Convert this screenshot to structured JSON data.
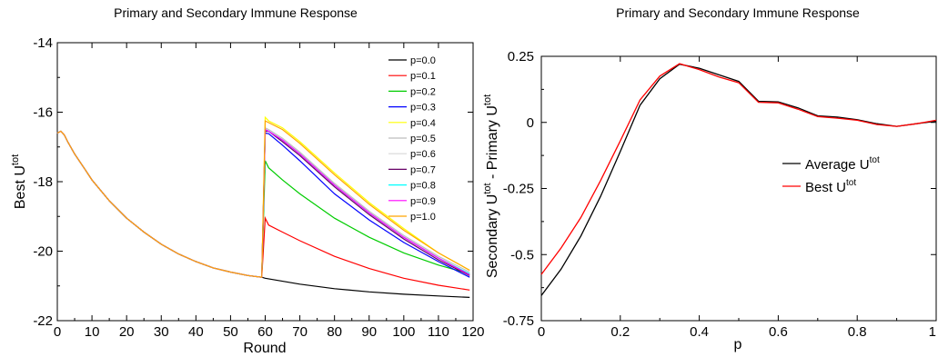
{
  "chart_data": [
    {
      "type": "line",
      "title": "Primary and Secondary Immune Response",
      "xlabel": "Round",
      "ylabel_main": "Best U",
      "ylabel_sup": "tot",
      "xlim": [
        0,
        120
      ],
      "ylim": [
        -22,
        -14
      ],
      "xticks": [
        0,
        10,
        20,
        30,
        40,
        50,
        60,
        70,
        80,
        90,
        100,
        110,
        120
      ],
      "yticks": [
        -22,
        -20,
        -18,
        -16,
        -14
      ],
      "grid": false,
      "legend_position": "top-right",
      "primary_curve": {
        "x": [
          0,
          1,
          2,
          3,
          5,
          8,
          10,
          15,
          20,
          25,
          30,
          35,
          40,
          45,
          50,
          55,
          59
        ],
        "y": [
          -16.6,
          -16.55,
          -16.65,
          -16.85,
          -17.2,
          -17.65,
          -17.95,
          -18.55,
          -19.05,
          -19.45,
          -19.8,
          -20.08,
          -20.3,
          -20.48,
          -20.6,
          -20.7,
          -20.75
        ]
      },
      "series": [
        {
          "name": "p=0.0",
          "color": "#000000",
          "x": [
            60,
            70,
            80,
            90,
            100,
            110,
            119
          ],
          "y": [
            -20.78,
            -20.95,
            -21.08,
            -21.17,
            -21.24,
            -21.29,
            -21.33
          ]
        },
        {
          "name": "p=0.1",
          "color": "#ff0000",
          "x": [
            60,
            61,
            65,
            70,
            80,
            90,
            100,
            110,
            119
          ],
          "y": [
            -19.05,
            -19.25,
            -19.45,
            -19.7,
            -20.15,
            -20.5,
            -20.78,
            -20.98,
            -21.12
          ]
        },
        {
          "name": "p=0.2",
          "color": "#00cc00",
          "x": [
            60,
            61,
            65,
            70,
            80,
            90,
            100,
            110,
            119
          ],
          "y": [
            -17.4,
            -17.6,
            -17.95,
            -18.35,
            -19.05,
            -19.6,
            -20.05,
            -20.4,
            -20.65
          ]
        },
        {
          "name": "p=0.3",
          "color": "#0000ff",
          "x": [
            60,
            61,
            65,
            70,
            80,
            90,
            100,
            110,
            119
          ],
          "y": [
            -16.6,
            -16.62,
            -16.95,
            -17.4,
            -18.35,
            -19.1,
            -19.75,
            -20.3,
            -20.75
          ]
        },
        {
          "name": "p=0.4",
          "color": "#ffff00",
          "x": [
            60,
            61,
            65,
            70,
            80,
            90,
            100,
            110,
            119
          ],
          "y": [
            -16.15,
            -16.25,
            -16.45,
            -16.85,
            -17.75,
            -18.6,
            -19.35,
            -20.05,
            -20.55
          ]
        },
        {
          "name": "p=0.5",
          "color": "#bebebe",
          "x": [
            60,
            61,
            65,
            70,
            80,
            90,
            100,
            110,
            119
          ],
          "y": [
            -16.45,
            -16.5,
            -16.75,
            -17.15,
            -18.05,
            -18.85,
            -19.55,
            -20.15,
            -20.6
          ]
        },
        {
          "name": "p=0.6",
          "color": "#d8d8d8",
          "x": [
            60,
            61,
            65,
            70,
            80,
            90,
            100,
            110,
            119
          ],
          "y": [
            -16.5,
            -16.55,
            -16.8,
            -17.2,
            -18.1,
            -18.9,
            -19.6,
            -20.2,
            -20.65
          ]
        },
        {
          "name": "p=0.7",
          "color": "#660066",
          "x": [
            60,
            61,
            65,
            70,
            80,
            90,
            100,
            110,
            119
          ],
          "y": [
            -16.55,
            -16.55,
            -16.85,
            -17.25,
            -18.15,
            -18.95,
            -19.65,
            -20.25,
            -20.7
          ]
        },
        {
          "name": "p=0.8",
          "color": "#00ffff",
          "x": [
            60,
            61,
            65,
            70,
            80,
            90,
            100,
            110,
            119
          ],
          "y": [
            -16.5,
            -16.55,
            -16.8,
            -17.2,
            -18.1,
            -18.9,
            -19.6,
            -20.2,
            -20.65
          ]
        },
        {
          "name": "p=0.9",
          "color": "#ff00ff",
          "x": [
            60,
            61,
            65,
            70,
            80,
            90,
            100,
            110,
            119
          ],
          "y": [
            -16.5,
            -16.55,
            -16.8,
            -17.2,
            -18.1,
            -18.9,
            -19.6,
            -20.2,
            -20.68
          ]
        },
        {
          "name": "p=1.0",
          "color": "#ffa500",
          "x": [
            60,
            61,
            65,
            70,
            80,
            90,
            100,
            110,
            119
          ],
          "y": [
            -16.25,
            -16.3,
            -16.5,
            -16.9,
            -17.8,
            -18.65,
            -19.4,
            -20.05,
            -20.55
          ]
        }
      ]
    },
    {
      "type": "line",
      "title": "Primary and Secondary Immune Response",
      "xlabel": "p",
      "ylabel_parts": [
        "Secondary U",
        "tot",
        " - Primary U",
        "tot"
      ],
      "xlim": [
        0,
        1
      ],
      "ylim": [
        -0.75,
        0.25
      ],
      "xticks": [
        0,
        0.2,
        0.4,
        0.6,
        0.8,
        1
      ],
      "xtick_labels": [
        "0",
        "0.2",
        "0.4",
        "0.6",
        "0.8",
        "1"
      ],
      "yticks": [
        -0.75,
        -0.5,
        -0.25,
        0,
        0.25
      ],
      "ytick_labels": [
        "-0.75",
        "-0.5",
        "-0.25",
        "0",
        "0.25"
      ],
      "grid": false,
      "legend_position": "center-right",
      "series": [
        {
          "name_main": "Average U",
          "name_sup": "tot",
          "color": "#000000",
          "x": [
            0,
            0.05,
            0.1,
            0.15,
            0.2,
            0.25,
            0.3,
            0.35,
            0.4,
            0.45,
            0.5,
            0.55,
            0.6,
            0.65,
            0.7,
            0.75,
            0.8,
            0.85,
            0.9,
            0.95,
            1.0
          ],
          "y": [
            -0.655,
            -0.555,
            -0.43,
            -0.28,
            -0.11,
            0.065,
            0.165,
            0.22,
            0.205,
            0.18,
            0.155,
            0.08,
            0.078,
            0.055,
            0.025,
            0.02,
            0.01,
            -0.005,
            -0.015,
            -0.005,
            0.005
          ]
        },
        {
          "name_main": "Best U",
          "name_sup": "tot",
          "color": "#ff0000",
          "x": [
            0,
            0.05,
            0.1,
            0.15,
            0.2,
            0.25,
            0.3,
            0.35,
            0.4,
            0.45,
            0.5,
            0.55,
            0.6,
            0.65,
            0.7,
            0.75,
            0.8,
            0.85,
            0.9,
            0.95,
            1.0
          ],
          "y": [
            -0.575,
            -0.475,
            -0.36,
            -0.22,
            -0.07,
            0.085,
            0.175,
            0.222,
            0.2,
            0.172,
            0.15,
            0.076,
            0.074,
            0.05,
            0.022,
            0.016,
            0.008,
            -0.008,
            -0.015,
            -0.005,
            0.008
          ]
        }
      ]
    }
  ]
}
